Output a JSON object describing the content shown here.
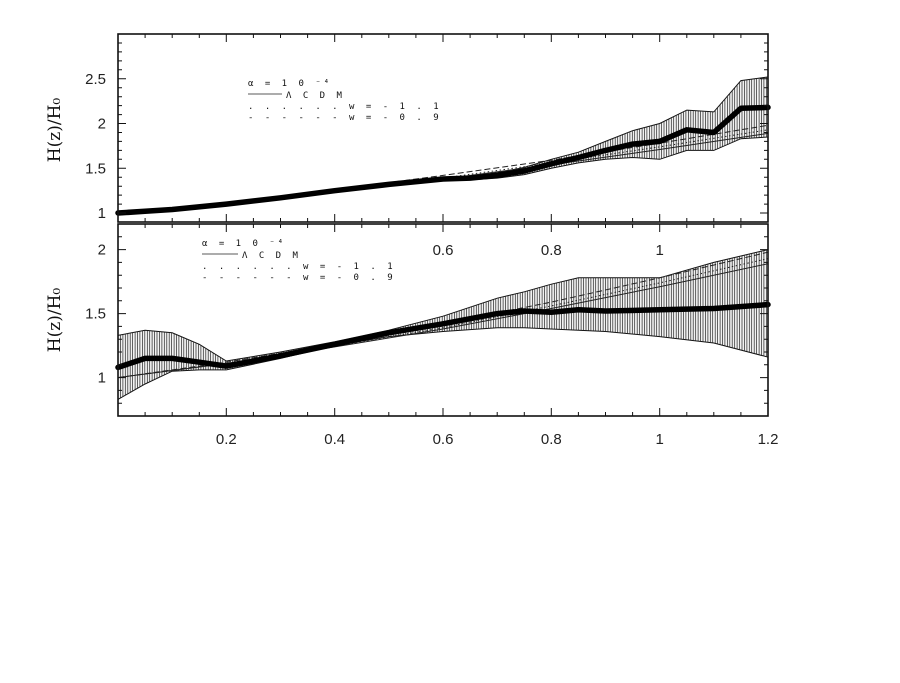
{
  "chart_data": [
    {
      "type": "line",
      "ylabel": "H(z)/H₀",
      "xlim": [
        0,
        1.2
      ],
      "ylim": [
        0.9,
        3.0
      ],
      "x_ticks": [
        "0.6",
        "0.8",
        "1"
      ],
      "y_ticks": [
        "1",
        "1.5",
        "2",
        "2.5"
      ],
      "legend": {
        "header": "α = 1 0 ⁻⁴",
        "entries": [
          "Λ C D M",
          ". . . . . . w = - 1 . 1",
          "- - - - - - w = - 0 . 9"
        ],
        "placement": "top-left"
      },
      "series": [
        {
          "name": "Λ C D M",
          "style": "solid-thin",
          "x": [
            0,
            0.2,
            0.4,
            0.6,
            0.8,
            1.0,
            1.2
          ],
          "y": [
            1.0,
            1.11,
            1.24,
            1.38,
            1.54,
            1.71,
            1.89
          ]
        },
        {
          "name": ". . . . . . w = - 1 . 1",
          "style": "dotted",
          "x": [
            0,
            0.2,
            0.4,
            0.6,
            0.8,
            1.0,
            1.2
          ],
          "y": [
            1.0,
            1.11,
            1.245,
            1.39,
            1.56,
            1.74,
            1.93
          ]
        },
        {
          "name": "- - - - - - w = - 0 . 9",
          "style": "dashed",
          "x": [
            0,
            0.2,
            0.4,
            0.6,
            0.8,
            1.0,
            1.2
          ],
          "y": [
            1.0,
            1.12,
            1.26,
            1.42,
            1.59,
            1.78,
            1.98
          ]
        },
        {
          "style": "reconstruction-thick",
          "x": [
            0,
            0.05,
            0.1,
            0.2,
            0.3,
            0.4,
            0.5,
            0.6,
            0.65,
            0.7,
            0.75,
            0.8,
            0.85,
            0.9,
            0.95,
            1.0,
            1.05,
            1.1,
            1.15,
            1.2
          ],
          "y": [
            1.0,
            1.02,
            1.04,
            1.1,
            1.17,
            1.25,
            1.32,
            1.38,
            1.39,
            1.42,
            1.47,
            1.55,
            1.62,
            1.7,
            1.77,
            1.8,
            1.93,
            1.9,
            2.17,
            2.18
          ],
          "lower": [
            1.0,
            1.02,
            1.04,
            1.1,
            1.17,
            1.25,
            1.32,
            1.37,
            1.37,
            1.39,
            1.43,
            1.5,
            1.56,
            1.6,
            1.62,
            1.6,
            1.7,
            1.7,
            1.83,
            1.85
          ],
          "upper": [
            1.0,
            1.02,
            1.04,
            1.1,
            1.17,
            1.25,
            1.32,
            1.39,
            1.41,
            1.45,
            1.51,
            1.6,
            1.68,
            1.8,
            1.92,
            2.0,
            2.15,
            2.13,
            2.48,
            2.52
          ]
        }
      ]
    },
    {
      "type": "line",
      "ylabel": "H(z)/H₀",
      "xlim": [
        0,
        1.2
      ],
      "ylim": [
        0.7,
        2.2
      ],
      "x_ticks": [
        "0.2",
        "0.4",
        "0.6",
        "0.8",
        "1",
        "1.2"
      ],
      "y_ticks": [
        "1",
        "1.5",
        "2"
      ],
      "legend": {
        "header": "α = 1 0 ⁻⁴",
        "entries": [
          "Λ C D M",
          ". . . . . . w = - 1 . 1",
          "- - - - - - w = - 0 . 9"
        ],
        "placement": "top-left"
      },
      "series": [
        {
          "name": "Λ C D M",
          "style": "solid-thin",
          "x": [
            0,
            0.2,
            0.4,
            0.6,
            0.8,
            1.0,
            1.2
          ],
          "y": [
            1.0,
            1.11,
            1.24,
            1.38,
            1.54,
            1.71,
            1.89
          ]
        },
        {
          "name": ". . . . . . w = - 1 . 1",
          "style": "dotted",
          "x": [
            0,
            0.2,
            0.4,
            0.6,
            0.8,
            1.0,
            1.2
          ],
          "y": [
            1.0,
            1.11,
            1.245,
            1.39,
            1.56,
            1.74,
            1.93
          ]
        },
        {
          "name": "- - - - - - w = - 0 . 9",
          "style": "dashed",
          "x": [
            0,
            0.2,
            0.4,
            0.6,
            0.8,
            1.0,
            1.2
          ],
          "y": [
            1.0,
            1.12,
            1.26,
            1.42,
            1.59,
            1.78,
            1.98
          ]
        },
        {
          "style": "reconstruction-thick",
          "x": [
            0,
            0.05,
            0.1,
            0.15,
            0.2,
            0.3,
            0.4,
            0.5,
            0.6,
            0.7,
            0.75,
            0.8,
            0.85,
            0.9,
            1.0,
            1.1,
            1.2
          ],
          "y": [
            1.08,
            1.15,
            1.15,
            1.12,
            1.09,
            1.17,
            1.26,
            1.35,
            1.42,
            1.5,
            1.52,
            1.51,
            1.53,
            1.52,
            1.53,
            1.54,
            1.57
          ],
          "lower": [
            0.83,
            0.95,
            1.05,
            1.06,
            1.06,
            1.15,
            1.25,
            1.32,
            1.36,
            1.39,
            1.39,
            1.38,
            1.37,
            1.36,
            1.32,
            1.27,
            1.16
          ],
          "upper": [
            1.33,
            1.37,
            1.35,
            1.26,
            1.13,
            1.2,
            1.28,
            1.37,
            1.48,
            1.62,
            1.67,
            1.73,
            1.78,
            1.78,
            1.78,
            1.9,
            2.0
          ]
        }
      ]
    }
  ]
}
